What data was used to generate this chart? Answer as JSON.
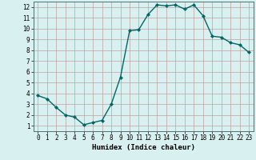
{
  "x": [
    0,
    1,
    2,
    3,
    4,
    5,
    6,
    7,
    8,
    9,
    10,
    11,
    12,
    13,
    14,
    15,
    16,
    17,
    18,
    19,
    20,
    21,
    22,
    23
  ],
  "y": [
    3.8,
    3.5,
    2.7,
    2.0,
    1.8,
    1.1,
    1.3,
    1.5,
    3.0,
    5.5,
    9.8,
    9.9,
    11.3,
    12.2,
    12.1,
    12.2,
    11.8,
    12.2,
    11.2,
    9.3,
    9.2,
    8.7,
    8.5,
    7.8
  ],
  "line_color": "#006666",
  "marker": "D",
  "marker_size": 2.0,
  "bg_color": "#d8f0f0",
  "grid_color": "#c0a0a0",
  "xlabel": "Humidex (Indice chaleur)",
  "xlabel_fontsize": 6.5,
  "xlim": [
    -0.5,
    23.5
  ],
  "ylim": [
    0.5,
    12.5
  ],
  "yticks": [
    1,
    2,
    3,
    4,
    5,
    6,
    7,
    8,
    9,
    10,
    11,
    12
  ],
  "xticks": [
    0,
    1,
    2,
    3,
    4,
    5,
    6,
    7,
    8,
    9,
    10,
    11,
    12,
    13,
    14,
    15,
    16,
    17,
    18,
    19,
    20,
    21,
    22,
    23
  ],
  "tick_fontsize": 5.5,
  "linewidth": 1.0
}
